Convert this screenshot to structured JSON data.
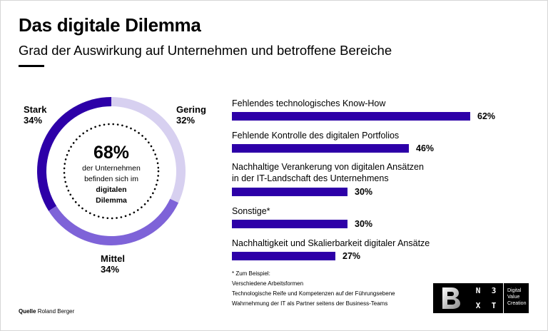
{
  "header": {
    "title": "Das digitale Dilemma",
    "subtitle": "Grad der Auswirkung auf Unternehmen und betroffene Bereiche"
  },
  "chart_data": [
    {
      "type": "pie",
      "variant": "donut",
      "slices": [
        {
          "label": "Stark",
          "value": 34,
          "value_label": "34%",
          "color": "#2d00a8"
        },
        {
          "label": "Gering",
          "value": 32,
          "value_label": "32%",
          "color": "#d7d0f0"
        },
        {
          "label": "Mittel",
          "value": 34,
          "value_label": "34%",
          "color": "#7e63d8"
        }
      ],
      "center": {
        "value": "68%",
        "line1": "der Unternehmen",
        "line2": "befinden sich im",
        "line3": "digitalen",
        "line4": "Dilemma"
      }
    },
    {
      "type": "bar",
      "orientation": "horizontal",
      "color": "#2d00a8",
      "xlim": [
        0,
        62
      ],
      "bars": [
        {
          "label": "Fehlendes technologisches Know-How",
          "value": 62,
          "value_label": "62%"
        },
        {
          "label": "Fehlende Kontrolle des digitalen Portfolios",
          "value": 46,
          "value_label": "46%"
        },
        {
          "label": "Nachhaltige Verankerung von digitalen Ansätzen",
          "label2": "in der IT-Landschaft des Unternehmens",
          "value": 30,
          "value_label": "30%"
        },
        {
          "label": "Sonstige*",
          "value": 30,
          "value_label": "30%"
        },
        {
          "label": "Nachhaltigkeit und Skalierbarkeit digitaler Ansätze",
          "value": 27,
          "value_label": "27%"
        }
      ]
    }
  ],
  "footnote": {
    "heading": "* Zum Beispiel:",
    "lines": [
      "Verschiedene Arbeitsformen",
      "Technologische Reife und Kompetenzen auf der Führungsebene",
      "Wahrnehmung der IT als Partner seitens der Business-Teams"
    ]
  },
  "source": {
    "label": "Quelle",
    "text": "Roland Berger"
  },
  "logo": {
    "letters": [
      "N",
      "3",
      "X",
      "T"
    ],
    "words": [
      "Digital",
      "Value",
      "Creation"
    ]
  }
}
